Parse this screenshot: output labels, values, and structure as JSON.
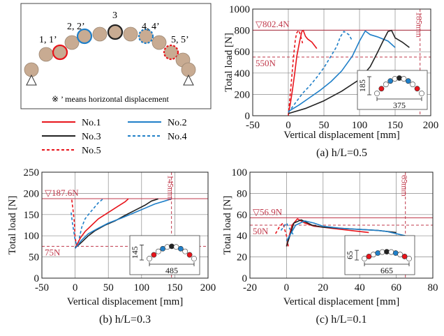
{
  "legend_panel": {
    "node_labels": [
      "1, 1’",
      "2, 2’",
      "3",
      "4, 4’",
      "5, 5’"
    ],
    "note": "※ ’ means horizontal displacement",
    "entries": [
      {
        "label": "No.1",
        "color": "#e8141b",
        "dash": "solid"
      },
      {
        "label": "No.2",
        "color": "#1f7fc8",
        "dash": "solid"
      },
      {
        "label": "No.3",
        "color": "#222222",
        "dash": "solid"
      },
      {
        "label": "No.4",
        "color": "#1f7fc8",
        "dash": "dashed"
      },
      {
        "label": "No.5",
        "color": "#e8141b",
        "dash": "dashed"
      }
    ]
  },
  "chart_data": [
    {
      "type": "line",
      "caption": "(a) h/L=0.5",
      "xlabel": "Vertical displacement [mm]",
      "ylabel": "Total load [N]",
      "xlim": [
        -50,
        200
      ],
      "ylim": [
        0,
        1000
      ],
      "xticks": [
        -50,
        0,
        50,
        100,
        150,
        200
      ],
      "yticks": [
        0,
        200,
        400,
        600,
        800,
        1000
      ],
      "ref_lines": [
        {
          "axis": "y",
          "value": 802.4,
          "label": "▽802.4N",
          "dash": "solid"
        },
        {
          "axis": "y",
          "value": 550,
          "label": "550N",
          "dash": "dashed"
        },
        {
          "axis": "x",
          "value": 185,
          "label": "185mm",
          "dash": "dashed"
        }
      ],
      "inset": {
        "height_label": "185",
        "span_label": "375"
      },
      "series": [
        {
          "color": "#e8141b",
          "dash": "solid",
          "x": [
            0,
            3,
            6,
            9,
            12,
            16,
            19,
            21,
            24,
            27,
            33,
            40
          ],
          "y": [
            10,
            120,
            250,
            400,
            560,
            700,
            790,
            800,
            745,
            720,
            690,
            630
          ]
        },
        {
          "color": "#e8141b",
          "dash": "dashed",
          "x": [
            0,
            2,
            4,
            6,
            8,
            10,
            12,
            15,
            18,
            20
          ],
          "y": [
            0,
            150,
            300,
            450,
            600,
            720,
            780,
            800,
            730,
            680
          ]
        },
        {
          "color": "#1f7fc8",
          "dash": "dashed",
          "x": [
            0,
            10,
            20,
            30,
            40,
            50,
            60,
            68,
            73,
            78,
            85,
            90
          ],
          "y": [
            30,
            120,
            210,
            280,
            360,
            450,
            560,
            650,
            740,
            790,
            760,
            700
          ]
        },
        {
          "color": "#1f7fc8",
          "dash": "solid",
          "x": [
            0,
            15,
            30,
            45,
            60,
            75,
            90,
            100,
            108,
            115,
            125,
            140,
            150
          ],
          "y": [
            40,
            100,
            170,
            240,
            320,
            420,
            560,
            700,
            795,
            760,
            740,
            700,
            640
          ]
        },
        {
          "color": "#222222",
          "dash": "solid",
          "x": [
            0,
            25,
            50,
            75,
            100,
            115,
            125,
            133,
            140,
            145,
            150,
            160,
            170
          ],
          "y": [
            20,
            70,
            140,
            230,
            340,
            460,
            590,
            700,
            790,
            800,
            730,
            690,
            640
          ]
        }
      ]
    },
    {
      "type": "line",
      "caption": "(b) h/L=0.3",
      "xlabel": "Vertical displacement [mm]",
      "ylabel": "Total load [N]",
      "xlim": [
        -50,
        200
      ],
      "ylim": [
        0,
        250
      ],
      "xticks": [
        -50,
        0,
        50,
        100,
        150,
        200
      ],
      "yticks": [
        0,
        50,
        100,
        150,
        200,
        250
      ],
      "ref_lines": [
        {
          "axis": "y",
          "value": 187.6,
          "label": "▽187.6N",
          "dash": "solid"
        },
        {
          "axis": "y",
          "value": 75,
          "label": "75N",
          "dash": "dashed"
        },
        {
          "axis": "x",
          "value": 145,
          "label": "145mm",
          "dash": "dashed"
        }
      ],
      "inset": {
        "height_label": "145",
        "span_label": "485"
      },
      "series": [
        {
          "color": "#e8141b",
          "dash": "dashed",
          "x": [
            -5,
            -3,
            -1,
            0,
            2,
            4
          ],
          "y": [
            185,
            160,
            130,
            95,
            80,
            75
          ]
        },
        {
          "color": "#1f7fc8",
          "dash": "dashed",
          "x": [
            -6,
            -4,
            -2,
            0,
            2,
            5,
            10,
            15,
            20,
            28,
            35,
            42
          ],
          "y": [
            155,
            130,
            110,
            90,
            80,
            85,
            120,
            140,
            150,
            165,
            178,
            187
          ]
        },
        {
          "color": "#e8141b",
          "dash": "solid",
          "x": [
            0,
            3,
            8,
            15,
            25,
            35,
            45,
            55,
            65,
            75,
            80
          ],
          "y": [
            70,
            80,
            95,
            110,
            125,
            140,
            150,
            160,
            170,
            180,
            187
          ]
        },
        {
          "color": "#222222",
          "dash": "solid",
          "x": [
            0,
            5,
            10,
            20,
            30,
            45,
            60,
            75,
            90,
            105,
            115,
            125
          ],
          "y": [
            72,
            78,
            85,
            100,
            112,
            125,
            135,
            148,
            160,
            172,
            182,
            187
          ]
        },
        {
          "color": "#1f7fc8",
          "dash": "solid",
          "x": [
            0,
            5,
            10,
            20,
            35,
            50,
            70,
            90,
            105,
            120,
            135,
            145
          ],
          "y": [
            70,
            80,
            90,
            105,
            118,
            130,
            142,
            155,
            165,
            175,
            182,
            187
          ]
        }
      ]
    },
    {
      "type": "line",
      "caption": "(c) h/L=0.1",
      "xlabel": "Vertical displacement [mm]",
      "ylabel": "Total load [N]",
      "xlim": [
        -20,
        80
      ],
      "ylim": [
        0,
        100
      ],
      "xticks": [
        -20,
        0,
        20,
        40,
        60,
        80
      ],
      "yticks": [
        0,
        20,
        40,
        60,
        80,
        100
      ],
      "ref_lines": [
        {
          "axis": "y",
          "value": 56.9,
          "label": "▽56.9N",
          "dash": "solid"
        },
        {
          "axis": "y",
          "value": 50,
          "label": "50N",
          "dash": "dashed"
        },
        {
          "axis": "x",
          "value": 65,
          "label": "65mm",
          "dash": "dashed"
        }
      ],
      "inset": {
        "height_label": "65",
        "span_label": "665"
      },
      "series": [
        {
          "color": "#e8141b",
          "dash": "dashed",
          "x": [
            -6,
            -4,
            -2,
            0,
            1
          ],
          "y": [
            42,
            48,
            52,
            40,
            30
          ]
        },
        {
          "color": "#1f7fc8",
          "dash": "dashed",
          "x": [
            -3,
            -1,
            0,
            2,
            4
          ],
          "y": [
            45,
            50,
            52,
            46,
            40
          ]
        },
        {
          "color": "#e8141b",
          "dash": "solid",
          "x": [
            0,
            3,
            6,
            10,
            15,
            20,
            25,
            30,
            35,
            40,
            45
          ],
          "y": [
            30,
            50,
            56,
            52,
            49,
            48,
            47,
            46,
            45,
            44,
            43
          ]
        },
        {
          "color": "#222222",
          "dash": "solid",
          "x": [
            0,
            4,
            8,
            14,
            20,
            30,
            40,
            50,
            55,
            60
          ],
          "y": [
            30,
            52,
            55,
            50,
            48,
            47,
            46,
            45,
            44,
            43
          ]
        },
        {
          "color": "#1f7fc8",
          "dash": "solid",
          "x": [
            0,
            5,
            10,
            15,
            20,
            30,
            40,
            50,
            55,
            60,
            65
          ],
          "y": [
            35,
            50,
            54,
            52,
            49,
            47,
            46,
            45,
            44,
            42,
            40
          ]
        }
      ]
    }
  ]
}
